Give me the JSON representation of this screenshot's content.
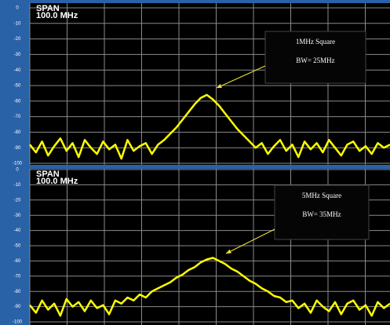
{
  "chart_data": [
    {
      "type": "line",
      "span_label": "SPAN",
      "span_value": "100.0 MHz",
      "annotation": [
        "1MHz Square",
        "BW= 25MHz"
      ],
      "ylim": [
        -100,
        0
      ],
      "yticks": [
        0,
        -10,
        -20,
        -30,
        -40,
        -50,
        -60,
        -70,
        -80,
        -90,
        -100
      ],
      "grid": true,
      "color": "#ffff00",
      "values": [
        -88,
        -93,
        -86,
        -95,
        -89,
        -84,
        -92,
        -87,
        -96,
        -85,
        -90,
        -94,
        -86,
        -91,
        -88,
        -97,
        -85,
        -92,
        -89,
        -87,
        -94,
        -88,
        -85,
        -81,
        -77,
        -72,
        -67,
        -62,
        -58,
        -56,
        -59,
        -63,
        -68,
        -73,
        -78,
        -82,
        -86,
        -90,
        -87,
        -94,
        -89,
        -85,
        -92,
        -88,
        -96,
        -86,
        -91,
        -87,
        -93,
        -85,
        -90,
        -95,
        -88,
        -86,
        -92,
        -89,
        -94,
        -87,
        -90,
        -88
      ]
    },
    {
      "type": "line",
      "span_label": "SPAN",
      "span_value": "100.0 MHz",
      "annotation": [
        "5MHz Square",
        "BW= 35MHz"
      ],
      "ylim": [
        -100,
        0
      ],
      "yticks": [
        0,
        -10,
        -20,
        -30,
        -40,
        -50,
        -60,
        -70,
        -80,
        -90,
        -100
      ],
      "grid": true,
      "color": "#ffff00",
      "values": [
        -89,
        -94,
        -86,
        -92,
        -88,
        -96,
        -85,
        -90,
        -87,
        -93,
        -86,
        -91,
        -89,
        -95,
        -86,
        -88,
        -84,
        -86,
        -82,
        -84,
        -80,
        -78,
        -76,
        -74,
        -71,
        -69,
        -66,
        -64,
        -61,
        -59,
        -58,
        -60,
        -62,
        -65,
        -67,
        -70,
        -73,
        -75,
        -78,
        -80,
        -83,
        -84,
        -87,
        -86,
        -91,
        -88,
        -94,
        -86,
        -90,
        -93,
        -87,
        -95,
        -88,
        -86,
        -92,
        -89,
        -96,
        -87,
        -91,
        -88
      ]
    }
  ]
}
